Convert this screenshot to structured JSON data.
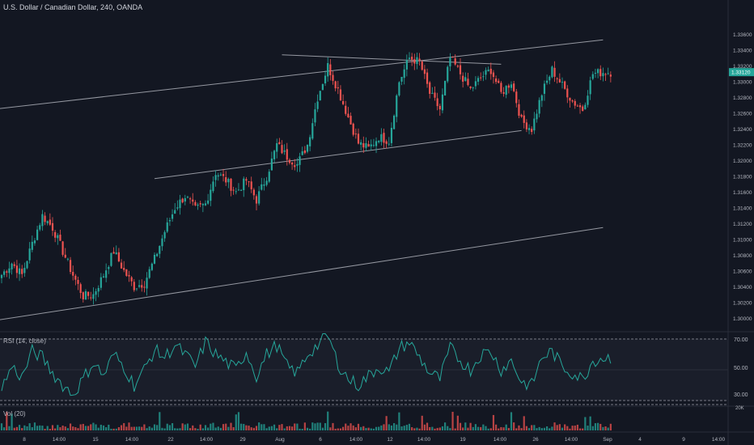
{
  "header": {
    "title": "U.S. Dollar / Canadian Dollar, 240, OANDA"
  },
  "indicators": {
    "rsi_label": "RSI (14, close)",
    "vol_label": "Vol (20)",
    "rsi_levels": [
      "70.00",
      "50.00",
      "30.00"
    ],
    "vol_level": "20K"
  },
  "colors": {
    "background": "#131722",
    "up": "#26a69a",
    "down": "#ef5350",
    "rsi_line": "#26a69a",
    "trendline": "#9598a1",
    "price_tag": "#26a69a"
  },
  "chart_data": {
    "type": "candlestick",
    "symbol": "U.S. Dollar / Canadian Dollar",
    "interval": "240",
    "source": "OANDA",
    "last_price": "1.33120",
    "ylim": [
      1.2985,
      1.3385
    ],
    "y_ticks": [
      "1.33600",
      "1.33400",
      "1.33200",
      "1.33000",
      "1.32800",
      "1.32600",
      "1.32400",
      "1.32200",
      "1.32000",
      "1.31800",
      "1.31600",
      "1.31400",
      "1.31200",
      "1.31000",
      "1.30800",
      "1.30600",
      "1.30400",
      "1.30200",
      "1.30000"
    ],
    "x_ticks": [
      "8",
      "14:00",
      "15",
      "14:00",
      "22",
      "14:00",
      "29",
      "Aug",
      "6",
      "14:00",
      "12",
      "14:00",
      "19",
      "14:00",
      "26",
      "14:00",
      "Sep",
      "4",
      "9",
      "14:00"
    ],
    "close_path": [
      [
        0,
        1.3055
      ],
      [
        4,
        1.307
      ],
      [
        8,
        1.3055
      ],
      [
        12,
        1.3095
      ],
      [
        16,
        1.313
      ],
      [
        20,
        1.3115
      ],
      [
        24,
        1.3085
      ],
      [
        28,
        1.3055
      ],
      [
        32,
        1.3028
      ],
      [
        36,
        1.303
      ],
      [
        40,
        1.3055
      ],
      [
        44,
        1.3085
      ],
      [
        48,
        1.306
      ],
      [
        52,
        1.304
      ],
      [
        56,
        1.3045
      ],
      [
        60,
        1.3075
      ],
      [
        64,
        1.311
      ],
      [
        68,
        1.314
      ],
      [
        72,
        1.3155
      ],
      [
        76,
        1.3138
      ],
      [
        80,
        1.3145
      ],
      [
        84,
        1.3185
      ],
      [
        88,
        1.3175
      ],
      [
        92,
        1.316
      ],
      [
        96,
        1.3175
      ],
      [
        100,
        1.315
      ],
      [
        104,
        1.318
      ],
      [
        108,
        1.322
      ],
      [
        112,
        1.3205
      ],
      [
        116,
        1.3195
      ],
      [
        120,
        1.322
      ],
      [
        124,
        1.328
      ],
      [
        128,
        1.332
      ],
      [
        132,
        1.329
      ],
      [
        136,
        1.3255
      ],
      [
        140,
        1.3222
      ],
      [
        144,
        1.3215
      ],
      [
        148,
        1.323
      ],
      [
        152,
        1.3225
      ],
      [
        156,
        1.33
      ],
      [
        160,
        1.333
      ],
      [
        164,
        1.3325
      ],
      [
        168,
        1.3285
      ],
      [
        172,
        1.3265
      ],
      [
        176,
        1.333
      ],
      [
        180,
        1.331
      ],
      [
        184,
        1.329
      ],
      [
        188,
        1.3305
      ],
      [
        192,
        1.3315
      ],
      [
        196,
        1.3285
      ],
      [
        200,
        1.33
      ],
      [
        204,
        1.325
      ],
      [
        208,
        1.324
      ],
      [
        212,
        1.3285
      ],
      [
        216,
        1.3315
      ],
      [
        220,
        1.3295
      ],
      [
        224,
        1.3275
      ],
      [
        228,
        1.3265
      ],
      [
        232,
        1.331
      ],
      [
        236,
        1.3312
      ]
    ],
    "indicators": [
      {
        "name": "RSI (14, close)",
        "levels": [
          70,
          50,
          30
        ],
        "path": [
          [
            0,
            38
          ],
          [
            4,
            52
          ],
          [
            8,
            45
          ],
          [
            12,
            62
          ],
          [
            16,
            58
          ],
          [
            20,
            48
          ],
          [
            24,
            40
          ],
          [
            28,
            34
          ],
          [
            32,
            44
          ],
          [
            36,
            55
          ],
          [
            40,
            46
          ],
          [
            44,
            60
          ],
          [
            48,
            52
          ],
          [
            52,
            40
          ],
          [
            56,
            50
          ],
          [
            60,
            63
          ],
          [
            64,
            58
          ],
          [
            68,
            66
          ],
          [
            72,
            60
          ],
          [
            76,
            52
          ],
          [
            80,
            68
          ],
          [
            84,
            60
          ],
          [
            88,
            55
          ],
          [
            92,
            50
          ],
          [
            96,
            62
          ],
          [
            100,
            46
          ],
          [
            104,
            60
          ],
          [
            108,
            66
          ],
          [
            112,
            52
          ],
          [
            116,
            48
          ],
          [
            120,
            60
          ],
          [
            124,
            66
          ],
          [
            128,
            72
          ],
          [
            132,
            54
          ],
          [
            136,
            44
          ],
          [
            140,
            40
          ],
          [
            144,
            46
          ],
          [
            148,
            52
          ],
          [
            152,
            48
          ],
          [
            156,
            64
          ],
          [
            160,
            68
          ],
          [
            164,
            58
          ],
          [
            168,
            48
          ],
          [
            172,
            44
          ],
          [
            176,
            64
          ],
          [
            180,
            56
          ],
          [
            184,
            50
          ],
          [
            188,
            60
          ],
          [
            192,
            62
          ],
          [
            196,
            50
          ],
          [
            200,
            56
          ],
          [
            204,
            42
          ],
          [
            208,
            40
          ],
          [
            212,
            58
          ],
          [
            216,
            62
          ],
          [
            220,
            52
          ],
          [
            224,
            48
          ],
          [
            228,
            44
          ],
          [
            232,
            56
          ],
          [
            236,
            58
          ]
        ]
      },
      {
        "name": "Vol (20)",
        "level": "20K"
      }
    ],
    "trendlines": [
      {
        "name": "upper-channel",
        "points": [
          [
            -3,
            1.3265
          ],
          [
            236,
            1.3353
          ]
        ]
      },
      {
        "name": "mid-channel",
        "points": [
          [
            60,
            1.3177
          ],
          [
            204,
            1.3238
          ]
        ]
      },
      {
        "name": "lower-channel",
        "points": [
          [
            -3,
            1.2997
          ],
          [
            236,
            1.3115
          ]
        ]
      },
      {
        "name": "top-descending",
        "points": [
          [
            110,
            1.3334
          ],
          [
            196,
            1.3322
          ]
        ]
      }
    ],
    "grid": false,
    "legend_position": "none"
  }
}
